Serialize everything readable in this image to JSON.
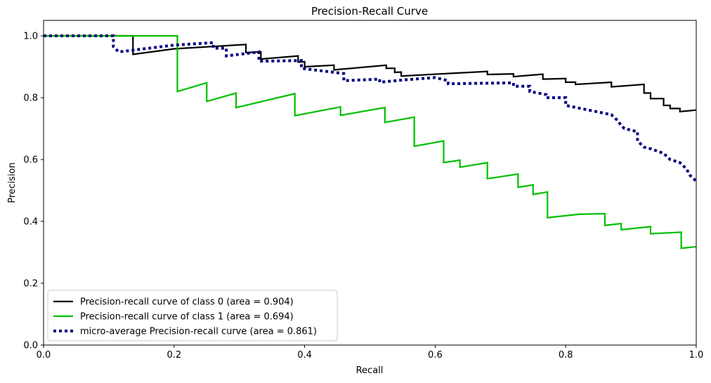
{
  "chart_data": {
    "type": "line",
    "title": "Precision-Recall Curve",
    "xlabel": "Recall",
    "ylabel": "Precision",
    "xlim": [
      0.0,
      1.0
    ],
    "ylim": [
      0.0,
      1.05
    ],
    "xticks": [
      "0.0",
      "0.2",
      "0.4",
      "0.6",
      "0.8",
      "1.0"
    ],
    "yticks": [
      "0.0",
      "0.2",
      "0.4",
      "0.6",
      "0.8",
      "1.0"
    ],
    "grid": false,
    "legend_position": "lower-left",
    "series": [
      {
        "name": "Precision-recall curve of class 0 (area = 0.904)",
        "color": "#000000",
        "style": "solid",
        "points": [
          [
            0.0,
            1.0
          ],
          [
            0.137,
            1.0
          ],
          [
            0.137,
            0.94
          ],
          [
            0.2,
            0.958
          ],
          [
            0.31,
            0.972
          ],
          [
            0.31,
            0.946
          ],
          [
            0.333,
            0.948
          ],
          [
            0.333,
            0.925
          ],
          [
            0.39,
            0.935
          ],
          [
            0.39,
            0.915
          ],
          [
            0.4,
            0.916
          ],
          [
            0.4,
            0.9
          ],
          [
            0.445,
            0.905
          ],
          [
            0.445,
            0.89
          ],
          [
            0.525,
            0.905
          ],
          [
            0.525,
            0.895
          ],
          [
            0.538,
            0.895
          ],
          [
            0.538,
            0.882
          ],
          [
            0.548,
            0.883
          ],
          [
            0.548,
            0.87
          ],
          [
            0.68,
            0.885
          ],
          [
            0.68,
            0.875
          ],
          [
            0.72,
            0.877
          ],
          [
            0.72,
            0.868
          ],
          [
            0.765,
            0.876
          ],
          [
            0.765,
            0.86
          ],
          [
            0.8,
            0.862
          ],
          [
            0.8,
            0.85
          ],
          [
            0.815,
            0.85
          ],
          [
            0.815,
            0.843
          ],
          [
            0.87,
            0.85
          ],
          [
            0.87,
            0.835
          ],
          [
            0.92,
            0.843
          ],
          [
            0.92,
            0.815
          ],
          [
            0.93,
            0.815
          ],
          [
            0.93,
            0.797
          ],
          [
            0.95,
            0.797
          ],
          [
            0.95,
            0.775
          ],
          [
            0.96,
            0.775
          ],
          [
            0.96,
            0.765
          ],
          [
            0.975,
            0.765
          ],
          [
            0.975,
            0.755
          ],
          [
            1.0,
            0.76
          ]
        ]
      },
      {
        "name": "Precision-recall curve of class 1 (area = 0.694)",
        "color": "#00c000",
        "style": "solid",
        "points": [
          [
            0.0,
            1.0
          ],
          [
            0.205,
            1.0
          ],
          [
            0.205,
            0.82
          ],
          [
            0.25,
            0.848
          ],
          [
            0.25,
            0.788
          ],
          [
            0.295,
            0.815
          ],
          [
            0.295,
            0.768
          ],
          [
            0.385,
            0.813
          ],
          [
            0.385,
            0.742
          ],
          [
            0.455,
            0.77
          ],
          [
            0.455,
            0.743
          ],
          [
            0.523,
            0.768
          ],
          [
            0.523,
            0.72
          ],
          [
            0.568,
            0.737
          ],
          [
            0.568,
            0.643
          ],
          [
            0.613,
            0.66
          ],
          [
            0.613,
            0.59
          ],
          [
            0.638,
            0.598
          ],
          [
            0.638,
            0.575
          ],
          [
            0.68,
            0.59
          ],
          [
            0.68,
            0.538
          ],
          [
            0.727,
            0.553
          ],
          [
            0.727,
            0.51
          ],
          [
            0.75,
            0.518
          ],
          [
            0.75,
            0.487
          ],
          [
            0.772,
            0.495
          ],
          [
            0.772,
            0.412
          ],
          [
            0.82,
            0.423
          ],
          [
            0.86,
            0.425
          ],
          [
            0.86,
            0.387
          ],
          [
            0.885,
            0.393
          ],
          [
            0.885,
            0.373
          ],
          [
            0.93,
            0.383
          ],
          [
            0.93,
            0.36
          ],
          [
            0.977,
            0.365
          ],
          [
            0.977,
            0.313
          ],
          [
            1.0,
            0.318
          ]
        ]
      },
      {
        "name": "micro-average Precision-recall curve (area = 0.861)",
        "color": "#000080",
        "style": "dotted",
        "points": [
          [
            0.0,
            1.0
          ],
          [
            0.107,
            1.0
          ],
          [
            0.107,
            0.965
          ],
          [
            0.115,
            0.948
          ],
          [
            0.2,
            0.97
          ],
          [
            0.26,
            0.978
          ],
          [
            0.26,
            0.96
          ],
          [
            0.28,
            0.96
          ],
          [
            0.28,
            0.935
          ],
          [
            0.33,
            0.948
          ],
          [
            0.33,
            0.918
          ],
          [
            0.395,
            0.92
          ],
          [
            0.395,
            0.895
          ],
          [
            0.46,
            0.878
          ],
          [
            0.46,
            0.855
          ],
          [
            0.515,
            0.86
          ],
          [
            0.515,
            0.85
          ],
          [
            0.555,
            0.858
          ],
          [
            0.6,
            0.865
          ],
          [
            0.62,
            0.855
          ],
          [
            0.62,
            0.845
          ],
          [
            0.72,
            0.848
          ],
          [
            0.72,
            0.837
          ],
          [
            0.745,
            0.837
          ],
          [
            0.745,
            0.82
          ],
          [
            0.77,
            0.81
          ],
          [
            0.77,
            0.8
          ],
          [
            0.8,
            0.8
          ],
          [
            0.8,
            0.775
          ],
          [
            0.87,
            0.745
          ],
          [
            0.88,
            0.725
          ],
          [
            0.885,
            0.71
          ],
          [
            0.89,
            0.7
          ],
          [
            0.91,
            0.69
          ],
          [
            0.91,
            0.66
          ],
          [
            0.92,
            0.64
          ],
          [
            0.93,
            0.635
          ],
          [
            0.95,
            0.62
          ],
          [
            0.96,
            0.6
          ],
          [
            0.975,
            0.59
          ],
          [
            0.985,
            0.57
          ],
          [
            0.99,
            0.55
          ],
          [
            1.0,
            0.53
          ]
        ]
      }
    ]
  }
}
